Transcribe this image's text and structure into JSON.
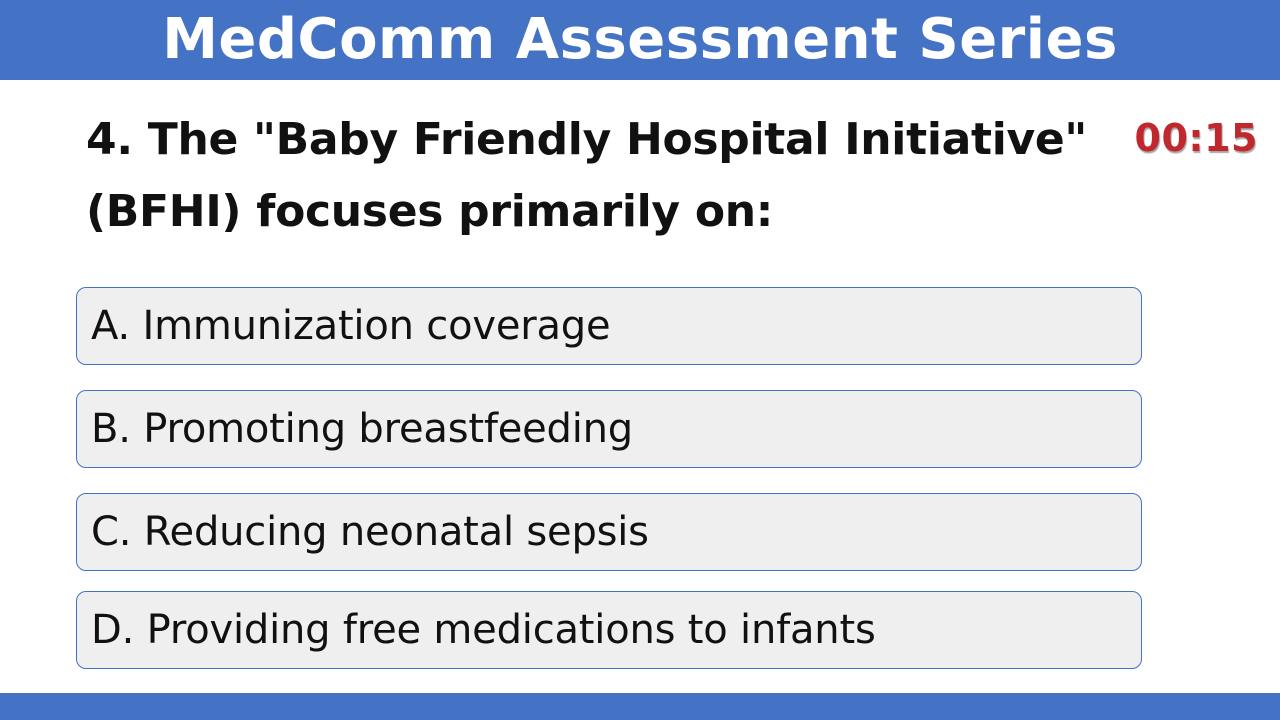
{
  "header": {
    "title": "MedComm Assessment Series"
  },
  "question": {
    "text": "4. The \"Baby Friendly Hospital Initiative\" (BFHI) focuses primarily on:"
  },
  "timer": {
    "value": "00:15"
  },
  "options": [
    {
      "label": "A. Immunization coverage"
    },
    {
      "label": "B. Promoting breastfeeding"
    },
    {
      "label": "C. Reducing neonatal sepsis"
    },
    {
      "label": "D. Providing free medications to infants"
    }
  ],
  "colors": {
    "header_bg": "#4472c4",
    "footer_bg": "#4472c4",
    "timer": "#c0282d",
    "option_bg": "#efefef",
    "option_border": "#4472c4"
  }
}
